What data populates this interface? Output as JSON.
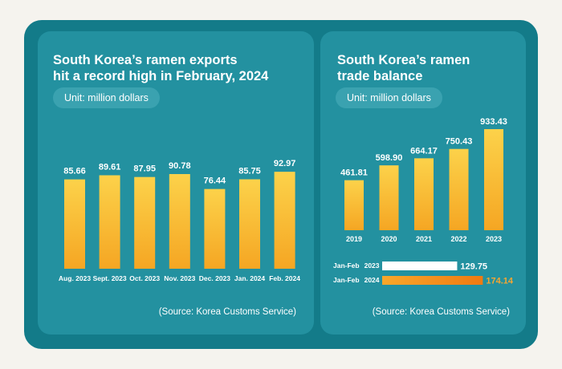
{
  "colors": {
    "background": "#f5f3ee",
    "frame": "#137b89",
    "panel": "#2391a0",
    "pill": "#3aa2b0",
    "bar_top": "#fcd24a",
    "bar_bottom": "#f5a623",
    "bar_white": "#ffffff",
    "bar_orange": "#f07d16",
    "orange_label": "#f7a531"
  },
  "left": {
    "title_line1": "South Korea’s ramen exports",
    "title_line2": "hit a record high in February, 2024",
    "unit": "Unit: million dollars",
    "source": "(Source: Korea Customs Service)"
  },
  "right": {
    "title_line1": "South Korea’s ramen",
    "title_line2": "trade balance",
    "unit": "Unit: million dollars",
    "source": "(Source: Korea Customs Service)"
  },
  "chart_data": [
    {
      "type": "bar",
      "title": "South Korea’s ramen exports hit a record high in February, 2024",
      "unit": "Unit: million dollars",
      "categories": [
        "Aug. 2023",
        "Sept. 2023",
        "Oct. 2023",
        "Nov. 2023",
        "Dec. 2023",
        "Jan. 2024",
        "Feb. 2024"
      ],
      "values": [
        85.66,
        89.61,
        87.95,
        90.78,
        76.44,
        85.75,
        92.97
      ],
      "value_labels": [
        "85.66",
        "89.61",
        "87.95",
        "90.78",
        "76.44",
        "85.75",
        "92.97"
      ],
      "ylim": [
        0,
        100
      ],
      "grid": false,
      "legend": "none"
    },
    {
      "type": "bar",
      "title": "South Korea’s ramen trade balance",
      "unit": "Unit: million dollars",
      "categories": [
        "2019",
        "2020",
        "2021",
        "2022",
        "2023"
      ],
      "values": [
        461.81,
        598.9,
        664.17,
        750.43,
        933.43
      ],
      "value_labels": [
        "461.81",
        "598.90",
        "664.17",
        "750.43",
        "933.43"
      ],
      "ylim": [
        0,
        1000
      ],
      "grid": false,
      "legend": "none"
    },
    {
      "type": "bar",
      "orientation": "horizontal",
      "categories": [
        "Jan-Feb 2023",
        "Jan-Feb 2024"
      ],
      "category_parts": [
        [
          "Jan-Feb",
          "2023"
        ],
        [
          "Jan-Feb",
          "2024"
        ]
      ],
      "values": [
        129.75,
        174.14
      ],
      "value_labels": [
        "129.75",
        "174.14"
      ],
      "xlim": [
        0,
        200
      ],
      "grid": false,
      "legend": "none"
    }
  ]
}
